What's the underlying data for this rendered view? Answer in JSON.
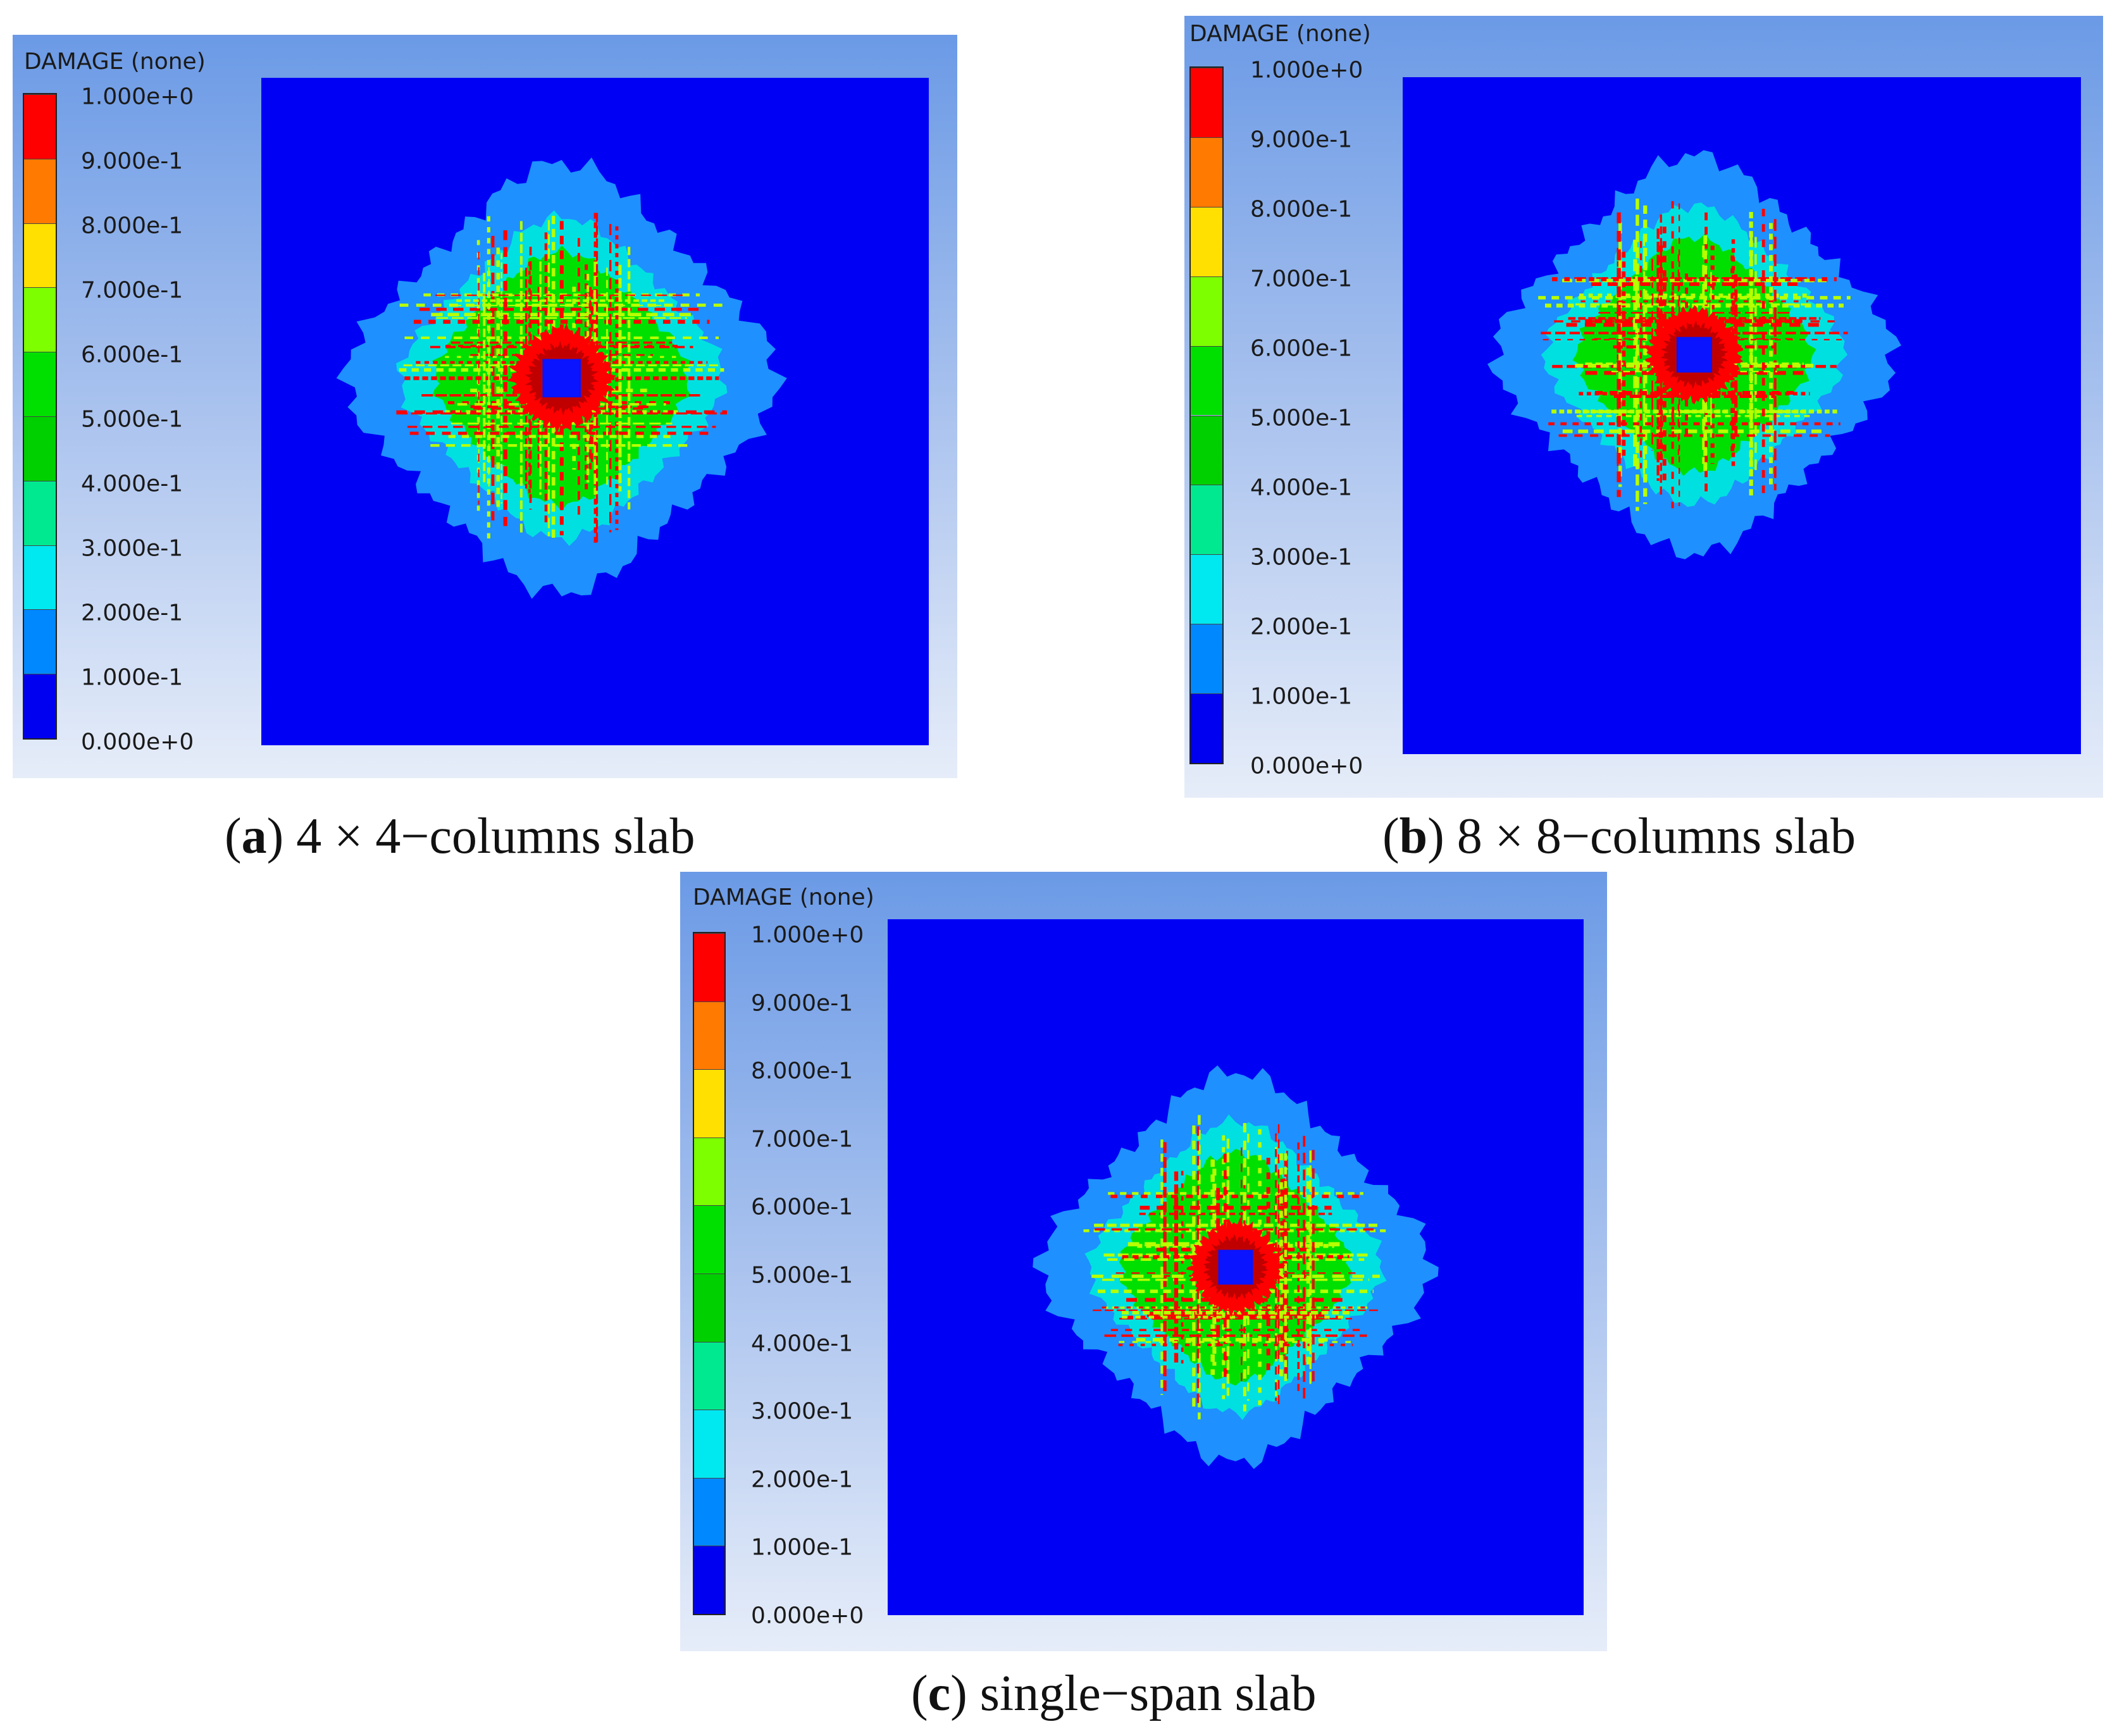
{
  "legend_title": "DAMAGE (none)",
  "legend_ticks": [
    "1.000e+0",
    "9.000e-1",
    "8.000e-1",
    "7.000e-1",
    "6.000e-1",
    "5.000e-1",
    "4.000e-1",
    "3.000e-1",
    "2.000e-1",
    "1.000e-1",
    "0.000e+0"
  ],
  "legend_colors": [
    "#ff0000",
    "#ff7a00",
    "#ffe000",
    "#7dff00",
    "#00e000",
    "#00d000",
    "#00e890",
    "#00e8f0",
    "#0088ff",
    "#0000f0"
  ],
  "field_colors": {
    "background": "#0000f5",
    "light_blue": "#1e90ff",
    "cyan": "#00e0e0",
    "green": "#00e000",
    "yellow_green": "#b8ff00",
    "red": "#ff0000",
    "dark_red": "#c00000",
    "hole": "#0a14ff"
  },
  "panels": [
    {
      "id": "a",
      "letter": "a",
      "caption": "4 × 4−columns slab"
    },
    {
      "id": "b",
      "letter": "b",
      "caption": "8 × 8−columns slab"
    },
    {
      "id": "c",
      "letter": "c",
      "caption": "single−span slab"
    }
  ]
}
